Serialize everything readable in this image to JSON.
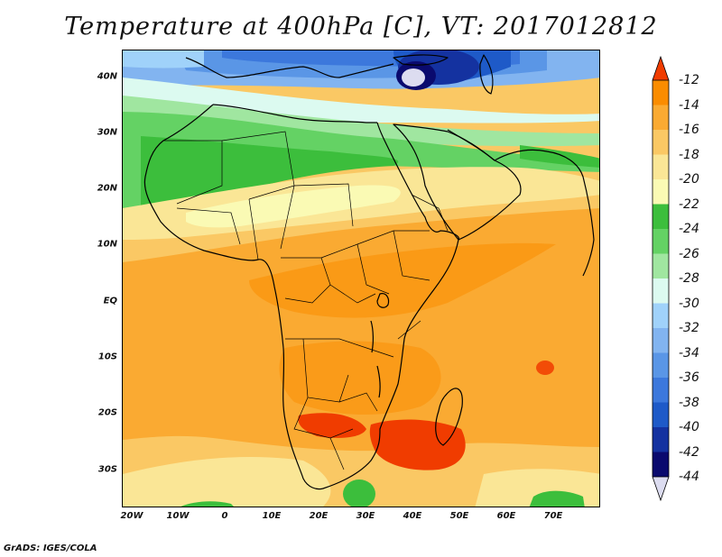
{
  "title": "Temperature at 400hPa [C], VT: 2017012812",
  "credit": "GrADS: IGES/COLA",
  "map": {
    "lat_labels": [
      "40N",
      "30N",
      "20N",
      "10N",
      "EQ",
      "10S",
      "20S",
      "30S"
    ],
    "lon_labels": [
      "20W",
      "10W",
      "0",
      "10E",
      "20E",
      "30E",
      "40E",
      "50E",
      "60E",
      "70E"
    ]
  },
  "colorbar": {
    "labels": [
      "-12",
      "-14",
      "-16",
      "-18",
      "-20",
      "-22",
      "-24",
      "-26",
      "-28",
      "-30",
      "-32",
      "-34",
      "-36",
      "-38",
      "-40",
      "-42",
      "-44"
    ],
    "colors": [
      "#f03c00",
      "#fa8c00",
      "#faaa32",
      "#fac864",
      "#fae696",
      "#fafab4",
      "#3cbe3c",
      "#64d264",
      "#a0e6a0",
      "#dcfaf0",
      "#a0d2fa",
      "#82b4f0",
      "#5a96e6",
      "#3c78dc",
      "#1e5ac8",
      "#1432a0",
      "#0a0a6e",
      "#dcdcf0"
    ]
  }
}
